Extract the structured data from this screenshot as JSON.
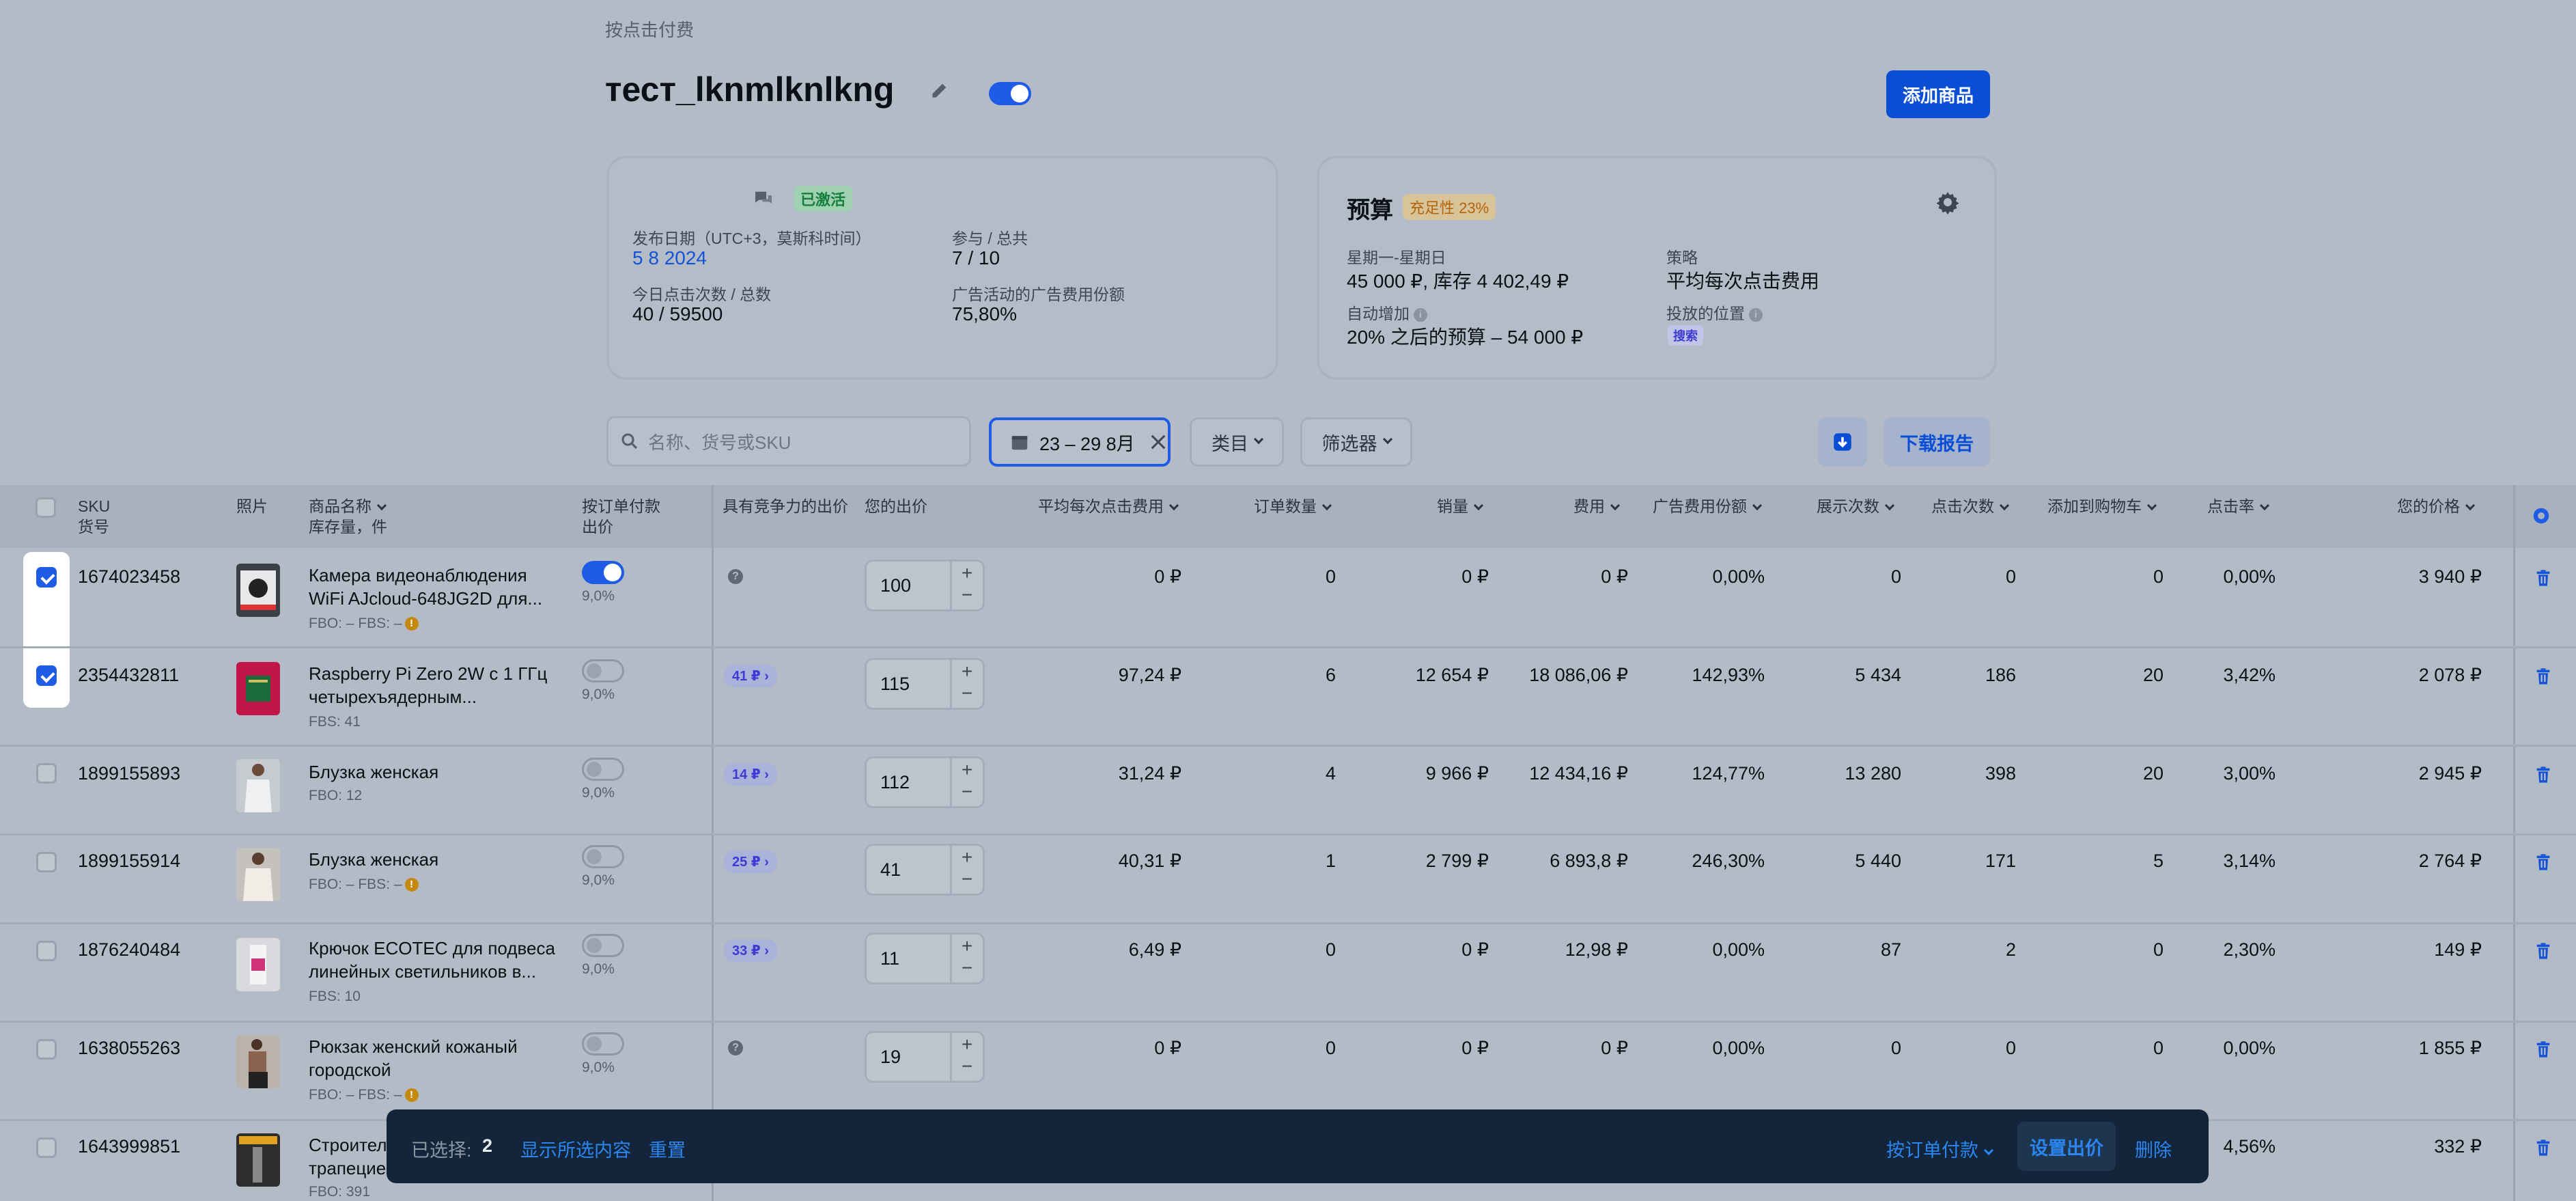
{
  "breadcrumb": "按点击付费",
  "campaign": {
    "title": "тест_lknmlknlkng",
    "add_button": "添加商品"
  },
  "stats_card": {
    "status": "已激活",
    "publish_label": "发布日期（UTC+3，莫斯科时间）",
    "publish_value": "5 8 2024",
    "participate_label": "参与 / 总共",
    "participate_value": "7 / 10",
    "clicks_label": "今日点击次数 / 总数",
    "clicks_value": "40 / 59500",
    "share_label": "广告活动的广告费用份额",
    "share_value": "75,80%"
  },
  "budget_card": {
    "title": "预算",
    "fill_badge": "充足性 23%",
    "period_label": "星期一-星期日",
    "period_value": "45 000 ₽, 库存 4 402,49 ₽",
    "strategy_label": "策略",
    "strategy_value": "平均每次点击费用",
    "auto_label": "自动增加",
    "auto_value": "20% 之后的预算 – 54 000 ₽",
    "placement_label": "投放的位置",
    "placement_value": "搜索"
  },
  "filters": {
    "search_placeholder": "名称、货号或SKU",
    "date_range": "23 – 29 8月",
    "category": "类目",
    "filter": "筛选器",
    "download": "下载报告"
  },
  "table": {
    "headers": {
      "sku": "SKU",
      "sku_sub": "货号",
      "photo": "照片",
      "name": "商品名称",
      "name_sub": "库存量，件",
      "cpo": "按订单付款",
      "cpo_sub": "出价",
      "competitive": "具有竞争力的出价",
      "your_bid": "您的出价",
      "avg_cpc": "平均每次点击费用",
      "orders": "订单数量",
      "sales": "销量",
      "cost": "费用",
      "ad_share": "广告费用份额",
      "impressions": "展示次数",
      "clicks": "点击次数",
      "add_cart": "添加到购物车",
      "ctr": "点击率",
      "price": "您的价格"
    },
    "rows": [
      {
        "sku": "1674023458",
        "name1": "Камера видеонаблюдения",
        "name2": "WiFi AJcloud-648JG2D для...",
        "stock": "FBO: –   FBS: –",
        "pct": "9,0%",
        "competitive": "",
        "bid": "100",
        "avg_cpc": "0 ₽",
        "orders": "0",
        "sales": "0 ₽",
        "cost": "0 ₽",
        "share": "0,00%",
        "impr": "0",
        "clicks": "0",
        "cart": "0",
        "ctr": "0,00%",
        "price": "3 940 ₽"
      },
      {
        "sku": "2354432811",
        "name1": "Raspberry Pi Zero 2W с 1 ГГц",
        "name2": "четырехъядерным...",
        "stock": "FBS: 41",
        "pct": "9,0%",
        "competitive": "41 ₽",
        "bid": "115",
        "avg_cpc": "97,24 ₽",
        "orders": "6",
        "sales": "12 654 ₽",
        "cost": "18 086,06 ₽",
        "share": "142,93%",
        "impr": "5 434",
        "clicks": "186",
        "cart": "20",
        "ctr": "3,42%",
        "price": "2 078 ₽"
      },
      {
        "sku": "1899155893",
        "name1": "Блузка женская",
        "name2": "",
        "stock": "FBO: 12",
        "pct": "9,0%",
        "competitive": "14 ₽",
        "bid": "112",
        "avg_cpc": "31,24 ₽",
        "orders": "4",
        "sales": "9 966 ₽",
        "cost": "12 434,16 ₽",
        "share": "124,77%",
        "impr": "13 280",
        "clicks": "398",
        "cart": "20",
        "ctr": "3,00%",
        "price": "2 945 ₽"
      },
      {
        "sku": "1899155914",
        "name1": "Блузка женская",
        "name2": "",
        "stock": "FBO: –   FBS: –",
        "pct": "9,0%",
        "competitive": "25 ₽",
        "bid": "41",
        "avg_cpc": "40,31 ₽",
        "orders": "1",
        "sales": "2 799 ₽",
        "cost": "6 893,8 ₽",
        "share": "246,30%",
        "impr": "5 440",
        "clicks": "171",
        "cart": "5",
        "ctr": "3,14%",
        "price": "2 764 ₽"
      },
      {
        "sku": "1876240484",
        "name1": "Крючок ECOTEC для подвеса",
        "name2": "линейных светильников в...",
        "stock": "FBS: 10",
        "pct": "9,0%",
        "competitive": "33 ₽",
        "bid": "11",
        "avg_cpc": "6,49 ₽",
        "orders": "0",
        "sales": "0 ₽",
        "cost": "12,98 ₽",
        "share": "0,00%",
        "impr": "87",
        "clicks": "2",
        "cart": "0",
        "ctr": "2,30%",
        "price": "149 ₽"
      },
      {
        "sku": "1638055263",
        "name1": "Рюкзак женский кожаный",
        "name2": "городской",
        "stock": "FBO: –   FBS: –",
        "pct": "9,0%",
        "competitive": "",
        "bid": "19",
        "avg_cpc": "0 ₽",
        "orders": "0",
        "sales": "0 ₽",
        "cost": "0 ₽",
        "share": "0,00%",
        "impr": "0",
        "clicks": "0",
        "cart": "0",
        "ctr": "0,00%",
        "price": "1 855 ₽"
      },
      {
        "sku": "1643999851",
        "name1": "Строител",
        "name2": "трапецие",
        "stock": "FBO: 391",
        "ctr": "4,56%",
        "price": "332 ₽"
      }
    ]
  },
  "bottom_bar": {
    "selected_label": "已选择:",
    "selected_count": "2",
    "show_selected": "显示所选内容",
    "reset": "重置",
    "cpo_menu": "按订单付款",
    "set_bid": "设置出价",
    "delete": "删除"
  },
  "colors": {
    "accent": "#1f5be6",
    "primary_button": "#0b4ed6",
    "bottom_bar": "#13253b",
    "trash": "#1452d6"
  }
}
